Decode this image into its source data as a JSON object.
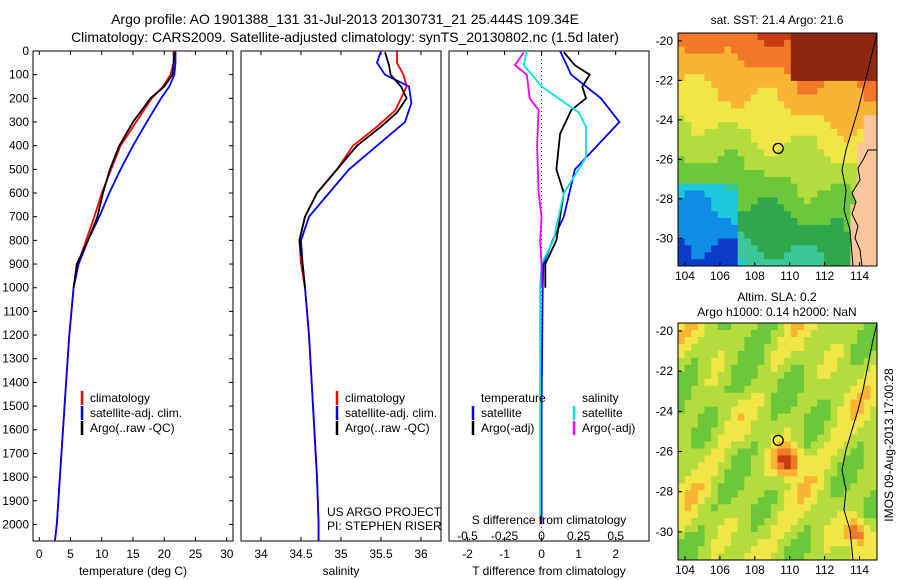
{
  "header": {
    "line1": "Argo profile: AO 1901388_131 31-Jul-2013 20130731_21 25.444S 109.34E",
    "line2": "Climatology: CARS2009. Satellite-adjusted climatology: synTS_20130802.nc (1.5d later)"
  },
  "colors": {
    "climatology": "#ff0000",
    "satellite": "#0000ff",
    "argo": "#000000",
    "t_satellite": "#00e5e5",
    "s_argo": "#ff00ff"
  },
  "chart_data": [
    {
      "type": "line",
      "panel": "temperature",
      "xlabel": "temperature (deg C)",
      "ylabel": "",
      "xlim": [
        -1,
        31
      ],
      "ylim": [
        2070,
        0
      ],
      "xticks": [
        "0",
        "5",
        "10",
        "15",
        "20",
        "25",
        "30"
      ],
      "yticks": [
        "0",
        "100",
        "200",
        "300",
        "400",
        "500",
        "600",
        "700",
        "800",
        "900",
        "1000",
        "1100",
        "1200",
        "1300",
        "1400",
        "1500",
        "1600",
        "1700",
        "1800",
        "1900",
        "2000"
      ],
      "series": [
        {
          "name": "climatology",
          "points": [
            [
              21.5,
              0
            ],
            [
              21.5,
              50
            ],
            [
              21.0,
              100
            ],
            [
              19.8,
              150
            ],
            [
              18.0,
              200
            ],
            [
              15.5,
              300
            ],
            [
              13.0,
              400
            ],
            [
              11.5,
              500
            ],
            [
              10.0,
              600
            ],
            [
              8.8,
              700
            ],
            [
              7.5,
              800
            ],
            [
              6.2,
              900
            ],
            [
              5.5,
              1000
            ],
            [
              4.8,
              1200
            ],
            [
              4.3,
              1400
            ],
            [
              3.8,
              1600
            ],
            [
              3.3,
              1800
            ],
            [
              2.8,
              2000
            ],
            [
              2.5,
              2070
            ]
          ]
        },
        {
          "name": "satellite-adj. clim.",
          "points": [
            [
              21.8,
              0
            ],
            [
              21.8,
              50
            ],
            [
              21.6,
              100
            ],
            [
              20.8,
              150
            ],
            [
              19.5,
              200
            ],
            [
              17.2,
              300
            ],
            [
              15.0,
              400
            ],
            [
              13.0,
              500
            ],
            [
              11.2,
              600
            ],
            [
              9.6,
              700
            ],
            [
              7.8,
              800
            ],
            [
              6.3,
              900
            ],
            [
              5.5,
              1000
            ],
            [
              4.8,
              1200
            ],
            [
              4.3,
              1400
            ],
            [
              3.8,
              1600
            ],
            [
              3.3,
              1800
            ],
            [
              2.8,
              2000
            ],
            [
              2.5,
              2070
            ]
          ]
        },
        {
          "name": "Argo(..raw -QC)",
          "points": [
            [
              21.6,
              5
            ],
            [
              21.5,
              50
            ],
            [
              21.3,
              100
            ],
            [
              20.0,
              150
            ],
            [
              17.8,
              200
            ],
            [
              15.0,
              300
            ],
            [
              12.8,
              400
            ],
            [
              11.3,
              500
            ],
            [
              10.2,
              600
            ],
            [
              9.3,
              700
            ],
            [
              7.8,
              800
            ],
            [
              6.0,
              900
            ],
            [
              5.5,
              1000
            ]
          ]
        }
      ],
      "legend": {
        "position": "lower-middle",
        "entries": [
          "climatology",
          "satellite-adj. clim.",
          "Argo(..raw -QC)"
        ]
      }
    },
    {
      "type": "line",
      "panel": "salinity",
      "xlabel": "salinity",
      "xlim": [
        33.75,
        36.25
      ],
      "ylim": [
        2070,
        0
      ],
      "xticks": [
        "34",
        "34.5",
        "35",
        "35.5",
        "36"
      ],
      "series": [
        {
          "name": "climatology",
          "points": [
            [
              35.7,
              0
            ],
            [
              35.7,
              50
            ],
            [
              35.78,
              100
            ],
            [
              35.82,
              150
            ],
            [
              35.68,
              250
            ],
            [
              35.45,
              320
            ],
            [
              35.15,
              400
            ],
            [
              34.95,
              500
            ],
            [
              34.7,
              600
            ],
            [
              34.55,
              700
            ],
            [
              34.48,
              800
            ],
            [
              34.5,
              900
            ],
            [
              34.55,
              1000
            ],
            [
              34.6,
              1200
            ],
            [
              34.65,
              1500
            ],
            [
              34.7,
              1800
            ],
            [
              34.72,
              2000
            ],
            [
              34.72,
              2070
            ]
          ]
        },
        {
          "name": "satellite-adj. clim.",
          "points": [
            [
              35.5,
              0
            ],
            [
              35.45,
              50
            ],
            [
              35.55,
              100
            ],
            [
              35.85,
              150
            ],
            [
              35.88,
              220
            ],
            [
              35.8,
              300
            ],
            [
              35.45,
              400
            ],
            [
              35.1,
              500
            ],
            [
              34.85,
              600
            ],
            [
              34.6,
              700
            ],
            [
              34.5,
              800
            ],
            [
              34.52,
              900
            ],
            [
              34.55,
              1000
            ],
            [
              34.6,
              1200
            ],
            [
              34.65,
              1500
            ],
            [
              34.7,
              1800
            ],
            [
              34.72,
              2000
            ],
            [
              34.72,
              2070
            ]
          ]
        },
        {
          "name": "Argo(..raw -QC)",
          "points": [
            [
              35.55,
              5
            ],
            [
              35.6,
              60
            ],
            [
              35.62,
              100
            ],
            [
              35.75,
              150
            ],
            [
              35.82,
              200
            ],
            [
              35.7,
              260
            ],
            [
              35.5,
              320
            ],
            [
              35.2,
              400
            ],
            [
              34.95,
              500
            ],
            [
              34.7,
              600
            ],
            [
              34.55,
              700
            ],
            [
              34.48,
              800
            ],
            [
              34.52,
              900
            ],
            [
              34.55,
              1000
            ]
          ]
        }
      ],
      "legend": {
        "position": "lower-middle",
        "entries": [
          "climatology",
          "satellite-adj. clim.",
          "Argo(..raw -QC)"
        ]
      },
      "annotations": [
        "US ARGO PROJECT",
        "PI: STEPHEN RISER"
      ]
    },
    {
      "type": "line",
      "panel": "difference",
      "xlabel_bottom": "T difference from climatology",
      "xlabel_top": "S difference from climatology",
      "xlim_T": [
        -2.5,
        2.9
      ],
      "xlim_S": [
        -0.625,
        0.725
      ],
      "ylim": [
        2070,
        0
      ],
      "xticks_T": [
        "-2",
        "-1",
        "0",
        "1",
        "2"
      ],
      "xticks_S": [
        "-0.5",
        "-0.25",
        "0",
        "0.25",
        "0.5"
      ],
      "series": [
        {
          "name": "temperature satellite",
          "points": [
            [
              0.5,
              0
            ],
            [
              0.8,
              100
            ],
            [
              1.6,
              200
            ],
            [
              2.1,
              300
            ],
            [
              1.5,
              400
            ],
            [
              0.9,
              500
            ],
            [
              0.6,
              700
            ],
            [
              0.3,
              800
            ],
            [
              0.05,
              900
            ],
            [
              0.03,
              1000
            ],
            [
              0.0,
              1500
            ],
            [
              0.0,
              2000
            ]
          ]
        },
        {
          "name": "temperature Argo(-adj)",
          "points": [
            [
              0.6,
              5
            ],
            [
              0.9,
              60
            ],
            [
              1.3,
              100
            ],
            [
              1.1,
              150
            ],
            [
              1.2,
              200
            ],
            [
              0.8,
              250
            ],
            [
              0.5,
              350
            ],
            [
              0.4,
              500
            ],
            [
              0.6,
              600
            ],
            [
              0.5,
              700
            ],
            [
              0.4,
              800
            ],
            [
              0.1,
              900
            ],
            [
              0.1,
              1000
            ]
          ]
        },
        {
          "name": "salinity satellite",
          "points": [
            [
              -0.1,
              0
            ],
            [
              -0.12,
              60
            ],
            [
              0.0,
              150
            ],
            [
              0.25,
              260
            ],
            [
              0.3,
              320
            ],
            [
              0.3,
              450
            ],
            [
              0.15,
              600
            ],
            [
              0.08,
              800
            ],
            [
              0.0,
              900
            ],
            [
              -0.01,
              1000
            ],
            [
              -0.01,
              1500
            ],
            [
              -0.01,
              2000
            ]
          ]
        },
        {
          "name": "salinity Argo(-adj)",
          "points": [
            [
              -0.12,
              5
            ],
            [
              -0.18,
              60
            ],
            [
              -0.1,
              100
            ],
            [
              -0.08,
              200
            ],
            [
              -0.02,
              250
            ],
            [
              -0.03,
              400
            ],
            [
              -0.02,
              600
            ],
            [
              0.0,
              700
            ],
            [
              -0.01,
              800
            ],
            [
              0.0,
              900
            ],
            [
              0.0,
              1000
            ]
          ]
        }
      ],
      "legend": {
        "position": "lower-middle",
        "headings": [
          "temperature",
          "salinity"
        ],
        "entries": [
          "satellite",
          "Argo(-adj)",
          "satellite",
          "Argo(-adj)"
        ]
      }
    },
    {
      "type": "heatmap",
      "panel": "sst-map",
      "title": "sat. SST: 21.4 Argo: 21.6",
      "xlim": [
        103.6,
        115
      ],
      "ylim": [
        -31.4,
        -19.6
      ],
      "xticks": [
        "104",
        "106",
        "108",
        "110",
        "112",
        "114"
      ],
      "yticks": [
        "-20",
        "-22",
        "-24",
        "-26",
        "-28",
        "-30"
      ],
      "marker": {
        "lon": 109.34,
        "lat": -25.444
      }
    },
    {
      "type": "heatmap",
      "panel": "sla-map",
      "title_line1": "Altim. SLA: 0.2",
      "title_line2": "Argo h1000: 0.14 h2000: NaN",
      "xlim": [
        103.6,
        115
      ],
      "ylim": [
        -31.4,
        -19.6
      ],
      "xticks": [
        "104",
        "106",
        "108",
        "110",
        "112",
        "114"
      ],
      "yticks": [
        "-20",
        "-22",
        "-24",
        "-26",
        "-28",
        "-30"
      ],
      "marker": {
        "lon": 109.34,
        "lat": -25.444
      }
    }
  ],
  "side_label": "IMOS 09-Aug-2013 17:00:28"
}
